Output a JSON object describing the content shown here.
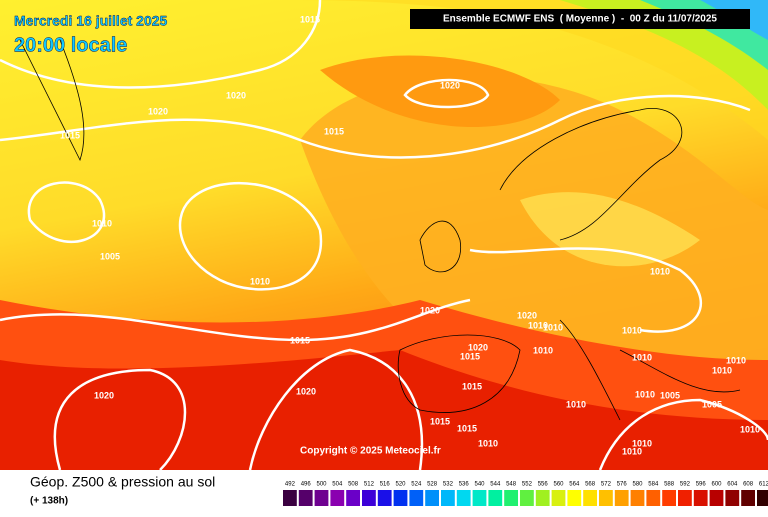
{
  "header": {
    "date": "Mercredi 16 juillet 2025",
    "time": "20:00 locale",
    "model": "Ensemble ECMWF ENS  ( Moyenne )  -  00 Z du 11/07/2025"
  },
  "map": {
    "isobar_labels": [
      1015,
      1020,
      1020,
      1015,
      1020,
      1015,
      1010,
      1005,
      1010,
      1010,
      1020,
      1020,
      1010,
      1010,
      1010,
      1015,
      1020,
      1015,
      1010,
      1010,
      1010,
      1010,
      1015,
      1020,
      1020,
      1005,
      1010,
      1005,
      1010,
      1015,
      1015,
      1010,
      1010,
      1010,
      1010
    ],
    "copyright": "Copyright © 2025 Meteociel.fr"
  },
  "footer": {
    "title": "Géop. Z500 & pression au sol",
    "lead": "(+ 138h)",
    "scale": {
      "labels": [
        492,
        496,
        500,
        504,
        508,
        512,
        516,
        520,
        524,
        528,
        532,
        536,
        540,
        544,
        548,
        552,
        556,
        560,
        564,
        568,
        572,
        576,
        580,
        584,
        588,
        592,
        596,
        600,
        604,
        608,
        612
      ],
      "colors": [
        "#3a0040",
        "#55006a",
        "#6e0090",
        "#8a00b0",
        "#6a00c8",
        "#3c00d8",
        "#1a10e8",
        "#0030f0",
        "#0060f8",
        "#0090fa",
        "#00b8fa",
        "#00d8f0",
        "#00e8c8",
        "#00f0a0",
        "#20f070",
        "#60f040",
        "#a0f020",
        "#d8f010",
        "#ffff00",
        "#ffe000",
        "#ffc000",
        "#ffa000",
        "#ff8000",
        "#ff6000",
        "#ff3c00",
        "#f02000",
        "#d81000",
        "#b80000",
        "#900000",
        "#600000",
        "#300000"
      ]
    }
  }
}
